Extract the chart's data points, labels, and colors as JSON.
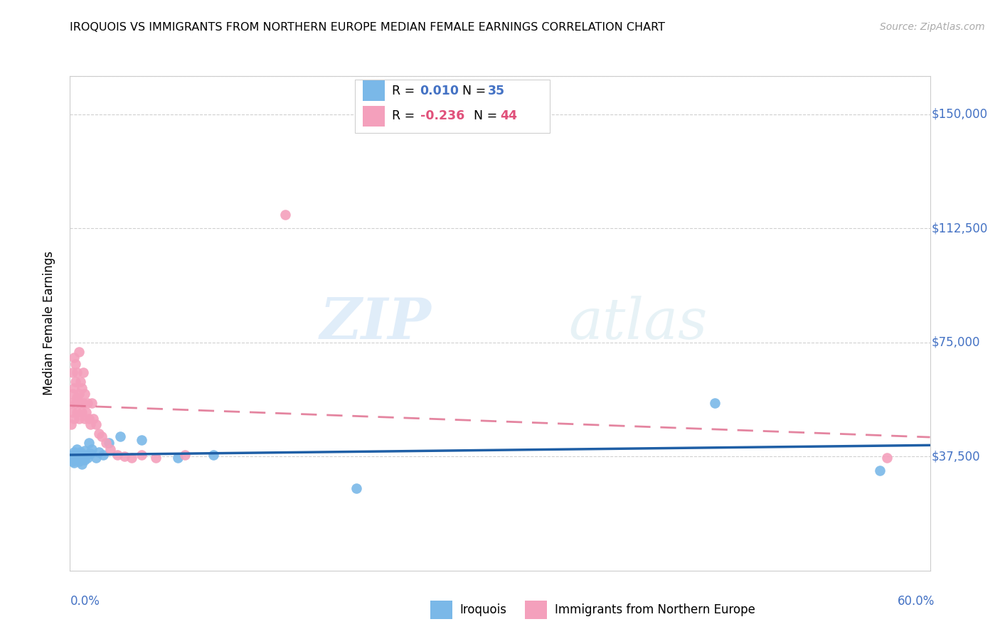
{
  "title": "IROQUOIS VS IMMIGRANTS FROM NORTHERN EUROPE MEDIAN FEMALE EARNINGS CORRELATION CHART",
  "source": "Source: ZipAtlas.com",
  "ylabel": "Median Female Earnings",
  "ylim": [
    0,
    162500
  ],
  "xlim": [
    0.0,
    0.6
  ],
  "watermark_zip": "ZIP",
  "watermark_atlas": "atlas",
  "ytick_vals": [
    37500,
    75000,
    112500,
    150000
  ],
  "ytick_labels": [
    "$37,500",
    "$75,000",
    "$112,500",
    "$150,000"
  ],
  "color_iroquois": "#7ab8e8",
  "color_immigrants": "#f4a0bc",
  "color_iroquois_line": "#1f5fa6",
  "color_immigrants_line": "#e07090",
  "color_blue_text": "#4472c4",
  "color_pink_text": "#e0507a",
  "r_iroquois": "0.010",
  "n_iroquois": "35",
  "r_immigrants": "-0.236",
  "n_immigrants": "44",
  "iroquois_x": [
    0.001,
    0.002,
    0.002,
    0.003,
    0.003,
    0.003,
    0.004,
    0.004,
    0.005,
    0.005,
    0.006,
    0.006,
    0.007,
    0.007,
    0.008,
    0.008,
    0.009,
    0.01,
    0.01,
    0.011,
    0.012,
    0.013,
    0.014,
    0.015,
    0.018,
    0.02,
    0.023,
    0.027,
    0.035,
    0.05,
    0.075,
    0.1,
    0.2,
    0.45,
    0.565
  ],
  "iroquois_y": [
    37500,
    36000,
    38000,
    37000,
    39000,
    35500,
    38500,
    36500,
    37000,
    40000,
    38000,
    36000,
    37500,
    39000,
    38000,
    35000,
    37000,
    39500,
    36500,
    38000,
    37000,
    42000,
    38500,
    40000,
    37000,
    39000,
    38000,
    42000,
    44000,
    43000,
    37000,
    38000,
    27000,
    55000,
    33000
  ],
  "immigrants_x": [
    0.001,
    0.001,
    0.002,
    0.002,
    0.002,
    0.003,
    0.003,
    0.003,
    0.004,
    0.004,
    0.004,
    0.005,
    0.005,
    0.005,
    0.006,
    0.006,
    0.006,
    0.007,
    0.007,
    0.008,
    0.008,
    0.009,
    0.009,
    0.01,
    0.01,
    0.011,
    0.012,
    0.013,
    0.014,
    0.015,
    0.016,
    0.018,
    0.02,
    0.022,
    0.025,
    0.028,
    0.033,
    0.038,
    0.043,
    0.05,
    0.06,
    0.08,
    0.15,
    0.57
  ],
  "immigrants_y": [
    48000,
    55000,
    52000,
    58000,
    65000,
    50000,
    60000,
    70000,
    55000,
    62000,
    68000,
    52000,
    57000,
    65000,
    50000,
    58000,
    72000,
    55000,
    62000,
    52000,
    60000,
    55000,
    65000,
    50000,
    58000,
    52000,
    55000,
    50000,
    48000,
    55000,
    50000,
    48000,
    45000,
    44000,
    42000,
    40000,
    38000,
    37500,
    37000,
    38000,
    37000,
    38000,
    117000,
    37000
  ]
}
